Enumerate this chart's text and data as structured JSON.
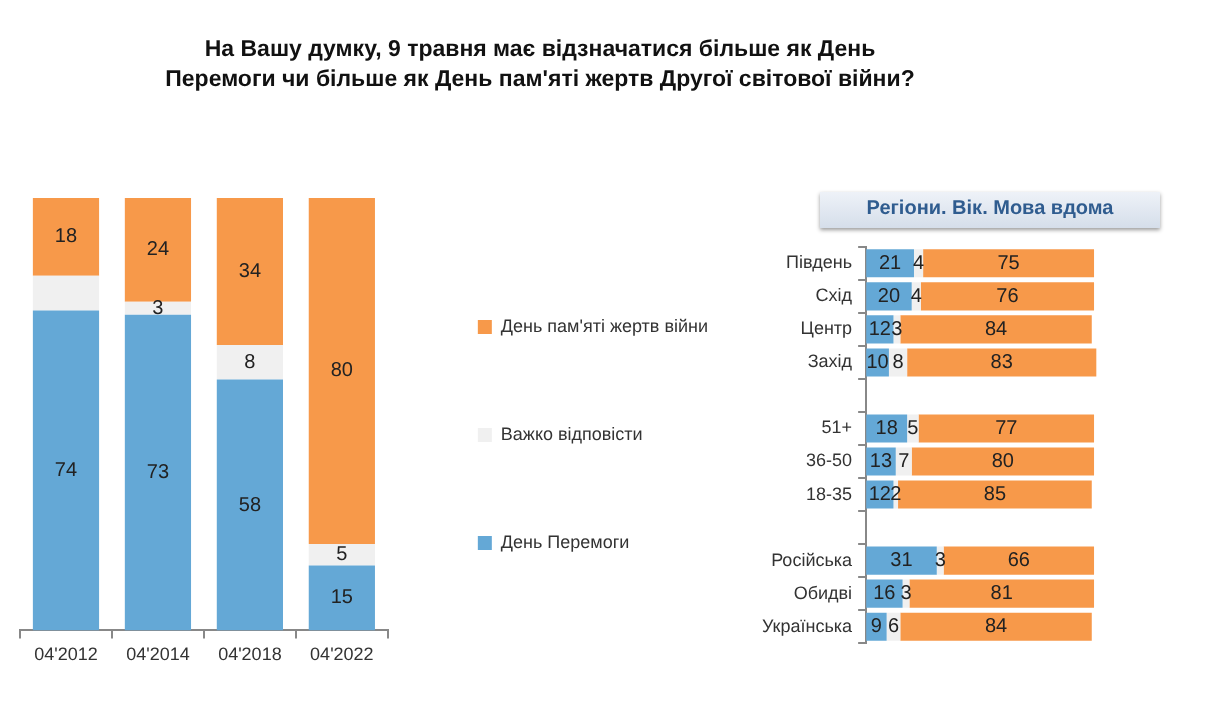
{
  "chart_data": [
    {
      "type": "bar",
      "title": "На Вашу думку, 9 травня має відзначатися більше як День Перемоги чи більше як День пам'яті жертв Другої світової війни?",
      "categories": [
        "04'2012",
        "04'2014",
        "04'2018",
        "04'2022"
      ],
      "stacked": true,
      "legend": "right",
      "series": [
        {
          "name": "День Перемоги",
          "color": "#64a8d6",
          "values": [
            74,
            73,
            58,
            15
          ],
          "value_labels": [
            "74",
            "73",
            "58",
            "15"
          ]
        },
        {
          "name": "Важко відповісти",
          "color": "#f0f0f0",
          "values": [
            8,
            3,
            8,
            5
          ],
          "value_labels": [
            null,
            "3",
            "8",
            "5"
          ]
        },
        {
          "name": "День пам'яті жертв війни",
          "color": "#f7994a",
          "values": [
            18,
            24,
            34,
            80
          ],
          "value_labels": [
            "18",
            "24",
            "34",
            "80"
          ]
        }
      ]
    },
    {
      "type": "bar",
      "title": "Регіони. Вік. Мова вдома",
      "orientation": "horizontal",
      "stacked": true,
      "data_labels": true,
      "categories": [
        "Південь",
        "Схід",
        "Центр",
        "Захід",
        null,
        "51+",
        "36-50",
        "18-35",
        null,
        "Російська",
        "Обидві",
        "Українська"
      ],
      "series": [
        {
          "color": "#64a8d6",
          "values": [
            21,
            20,
            12,
            10,
            null,
            18,
            13,
            12,
            null,
            31,
            16,
            9
          ]
        },
        {
          "color": "#f0f0f0",
          "values": [
            4,
            4,
            3,
            8,
            null,
            5,
            7,
            2,
            null,
            3,
            3,
            6
          ]
        },
        {
          "color": "#f7994a",
          "values": [
            75,
            76,
            84,
            83,
            null,
            77,
            80,
            85,
            null,
            66,
            81,
            84
          ]
        }
      ]
    }
  ]
}
